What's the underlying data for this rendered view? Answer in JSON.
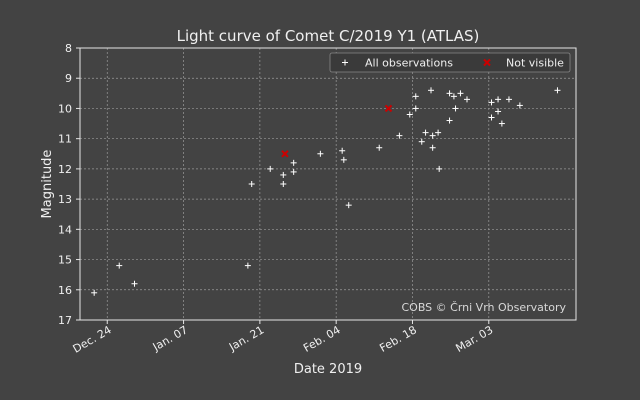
{
  "chart_data": {
    "type": "scatter",
    "title": "Light curve of Comet C/2019 Y1 (ATLAS)",
    "xlabel": "Date 2019",
    "ylabel": "Magnitude",
    "x_unit": "days since Dec. 24",
    "xlim": [
      -5,
      86
    ],
    "ylim": [
      17,
      8
    ],
    "y_inverted": true,
    "grid": true,
    "x_ticks": [
      {
        "value": 0,
        "label": "Dec. 24"
      },
      {
        "value": 14,
        "label": "Jan. 07"
      },
      {
        "value": 28,
        "label": "Jan. 21"
      },
      {
        "value": 42,
        "label": "Feb. 04"
      },
      {
        "value": 56,
        "label": "Feb. 18"
      },
      {
        "value": 70,
        "label": "Mar. 03"
      }
    ],
    "y_ticks": [
      8,
      9,
      10,
      11,
      12,
      13,
      14,
      15,
      16,
      17
    ],
    "legend_position": "top-right",
    "series": [
      {
        "name": "All observations",
        "marker": "+",
        "color": "#ffffff",
        "points": [
          [
            -2.4,
            16.1
          ],
          [
            2.2,
            15.2
          ],
          [
            5.0,
            15.8
          ],
          [
            25.8,
            15.2
          ],
          [
            26.5,
            12.5
          ],
          [
            29.9,
            12.0
          ],
          [
            32.3,
            12.2
          ],
          [
            32.3,
            12.5
          ],
          [
            34.2,
            11.8
          ],
          [
            34.2,
            12.1
          ],
          [
            39.1,
            11.5
          ],
          [
            43.1,
            11.4
          ],
          [
            43.4,
            11.7
          ],
          [
            44.3,
            13.2
          ],
          [
            49.9,
            11.3
          ],
          [
            53.6,
            10.9
          ],
          [
            55.5,
            10.2
          ],
          [
            56.6,
            9.6
          ],
          [
            56.6,
            10.0
          ],
          [
            57.7,
            11.1
          ],
          [
            58.4,
            10.8
          ],
          [
            59.4,
            9.4
          ],
          [
            59.7,
            10.9
          ],
          [
            59.7,
            11.3
          ],
          [
            60.7,
            10.8
          ],
          [
            60.9,
            12.0
          ],
          [
            62.8,
            10.4
          ],
          [
            62.8,
            9.5
          ],
          [
            63.6,
            9.6
          ],
          [
            63.9,
            10.0
          ],
          [
            64.8,
            9.5
          ],
          [
            66.0,
            9.7
          ],
          [
            70.5,
            9.8
          ],
          [
            70.5,
            10.3
          ],
          [
            71.7,
            9.7
          ],
          [
            71.7,
            10.1
          ],
          [
            72.4,
            10.5
          ],
          [
            73.7,
            9.7
          ],
          [
            75.7,
            9.9
          ],
          [
            82.6,
            9.4
          ]
        ]
      },
      {
        "name": "Not visible",
        "marker": "x",
        "color": "#cc0000",
        "points": [
          [
            32.6,
            11.5
          ],
          [
            51.6,
            10.0
          ]
        ]
      }
    ],
    "annotation": "COBS © Črni Vrh Observatory"
  }
}
